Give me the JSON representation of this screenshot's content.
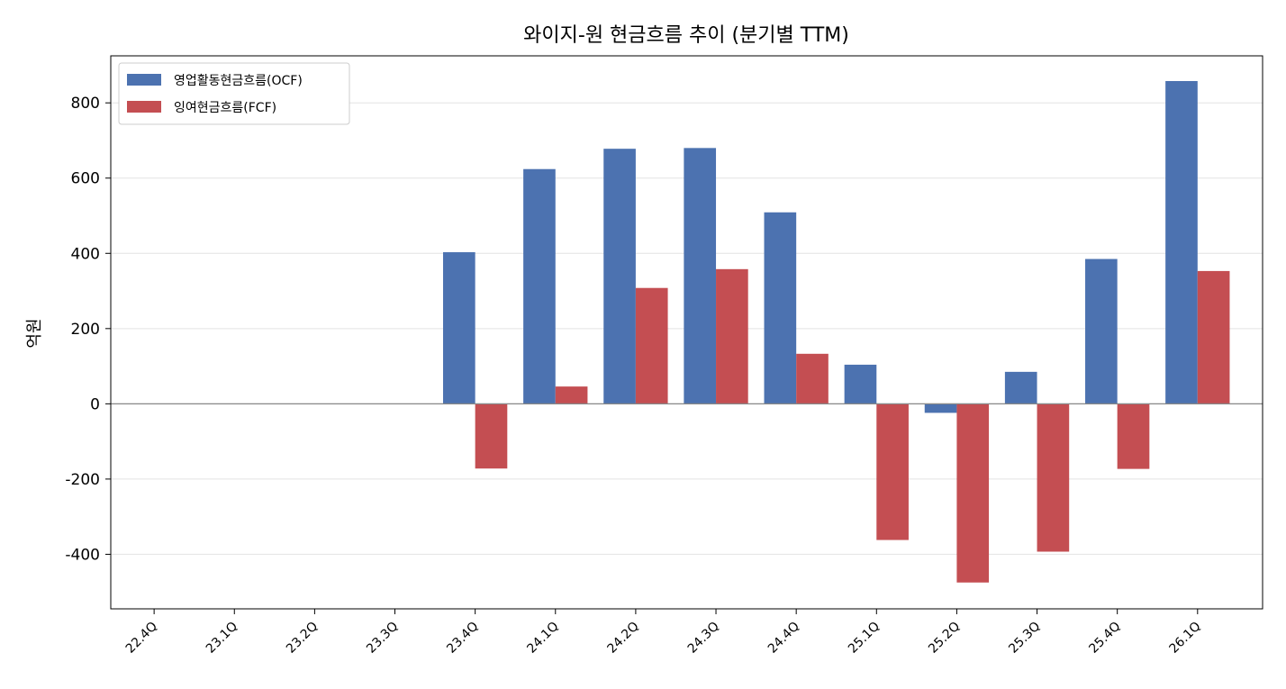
{
  "chart_data": {
    "type": "bar",
    "title": "와이지-원 현금흐름 추이 (분기별 TTM)",
    "xlabel": "",
    "ylabel": "억원",
    "categories": [
      "22.4Q",
      "23.1Q",
      "23.2Q",
      "23.3Q",
      "23.4Q",
      "24.1Q",
      "24.2Q",
      "24.3Q",
      "24.4Q",
      "25.1Q",
      "25.2Q",
      "25.3Q",
      "25.4Q",
      "26.1Q"
    ],
    "series": [
      {
        "name": "영업활동현금흐름(OCF)",
        "color": "#4c72b0",
        "values": [
          null,
          null,
          null,
          null,
          403,
          624,
          678,
          680,
          509,
          104,
          -24,
          85,
          385,
          858
        ]
      },
      {
        "name": "잉여현금흐름(FCF)",
        "color": "#c44e52",
        "values": [
          null,
          null,
          null,
          null,
          -172,
          46,
          308,
          358,
          133,
          -362,
          -475,
          -393,
          -173,
          353
        ]
      }
    ],
    "ylim": [
      -545,
      925
    ],
    "yticks": [
      -400,
      -200,
      0,
      200,
      400,
      600,
      800
    ],
    "ytick_labels": [
      "-400",
      "-200",
      "0",
      "200",
      "400",
      "600",
      "800"
    ],
    "grid": "y",
    "legend": "top-left"
  }
}
